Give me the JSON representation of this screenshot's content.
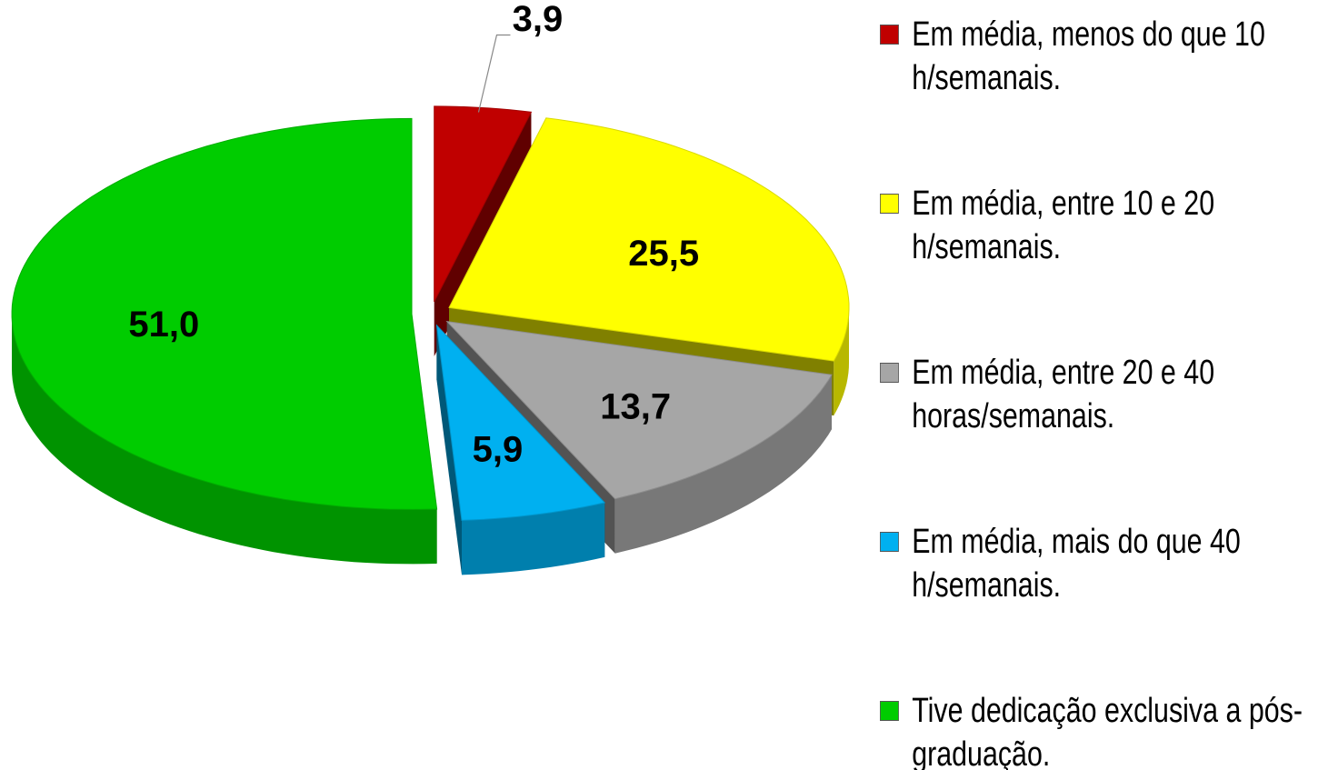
{
  "chart_data": {
    "type": "pie",
    "categories": [
      "Em média, menos do que 10 h/semanais.",
      "Em média, entre 10 e 20 h/semanais.",
      "Em média, entre 20 e 40 horas/semanais.",
      "Em média, mais do que 40 h/semanais.",
      "Tive dedicação exclusiva a pós-graduação."
    ],
    "values": [
      3.9,
      25.5,
      13.7,
      5.9,
      51.0
    ],
    "value_labels": [
      "3,9",
      "25,5",
      "13,7",
      "5,9",
      "51,0"
    ],
    "colors": [
      "#c00000",
      "#ffff00",
      "#a6a6a6",
      "#00b0f0",
      "#00cc00"
    ],
    "legend": "right"
  }
}
